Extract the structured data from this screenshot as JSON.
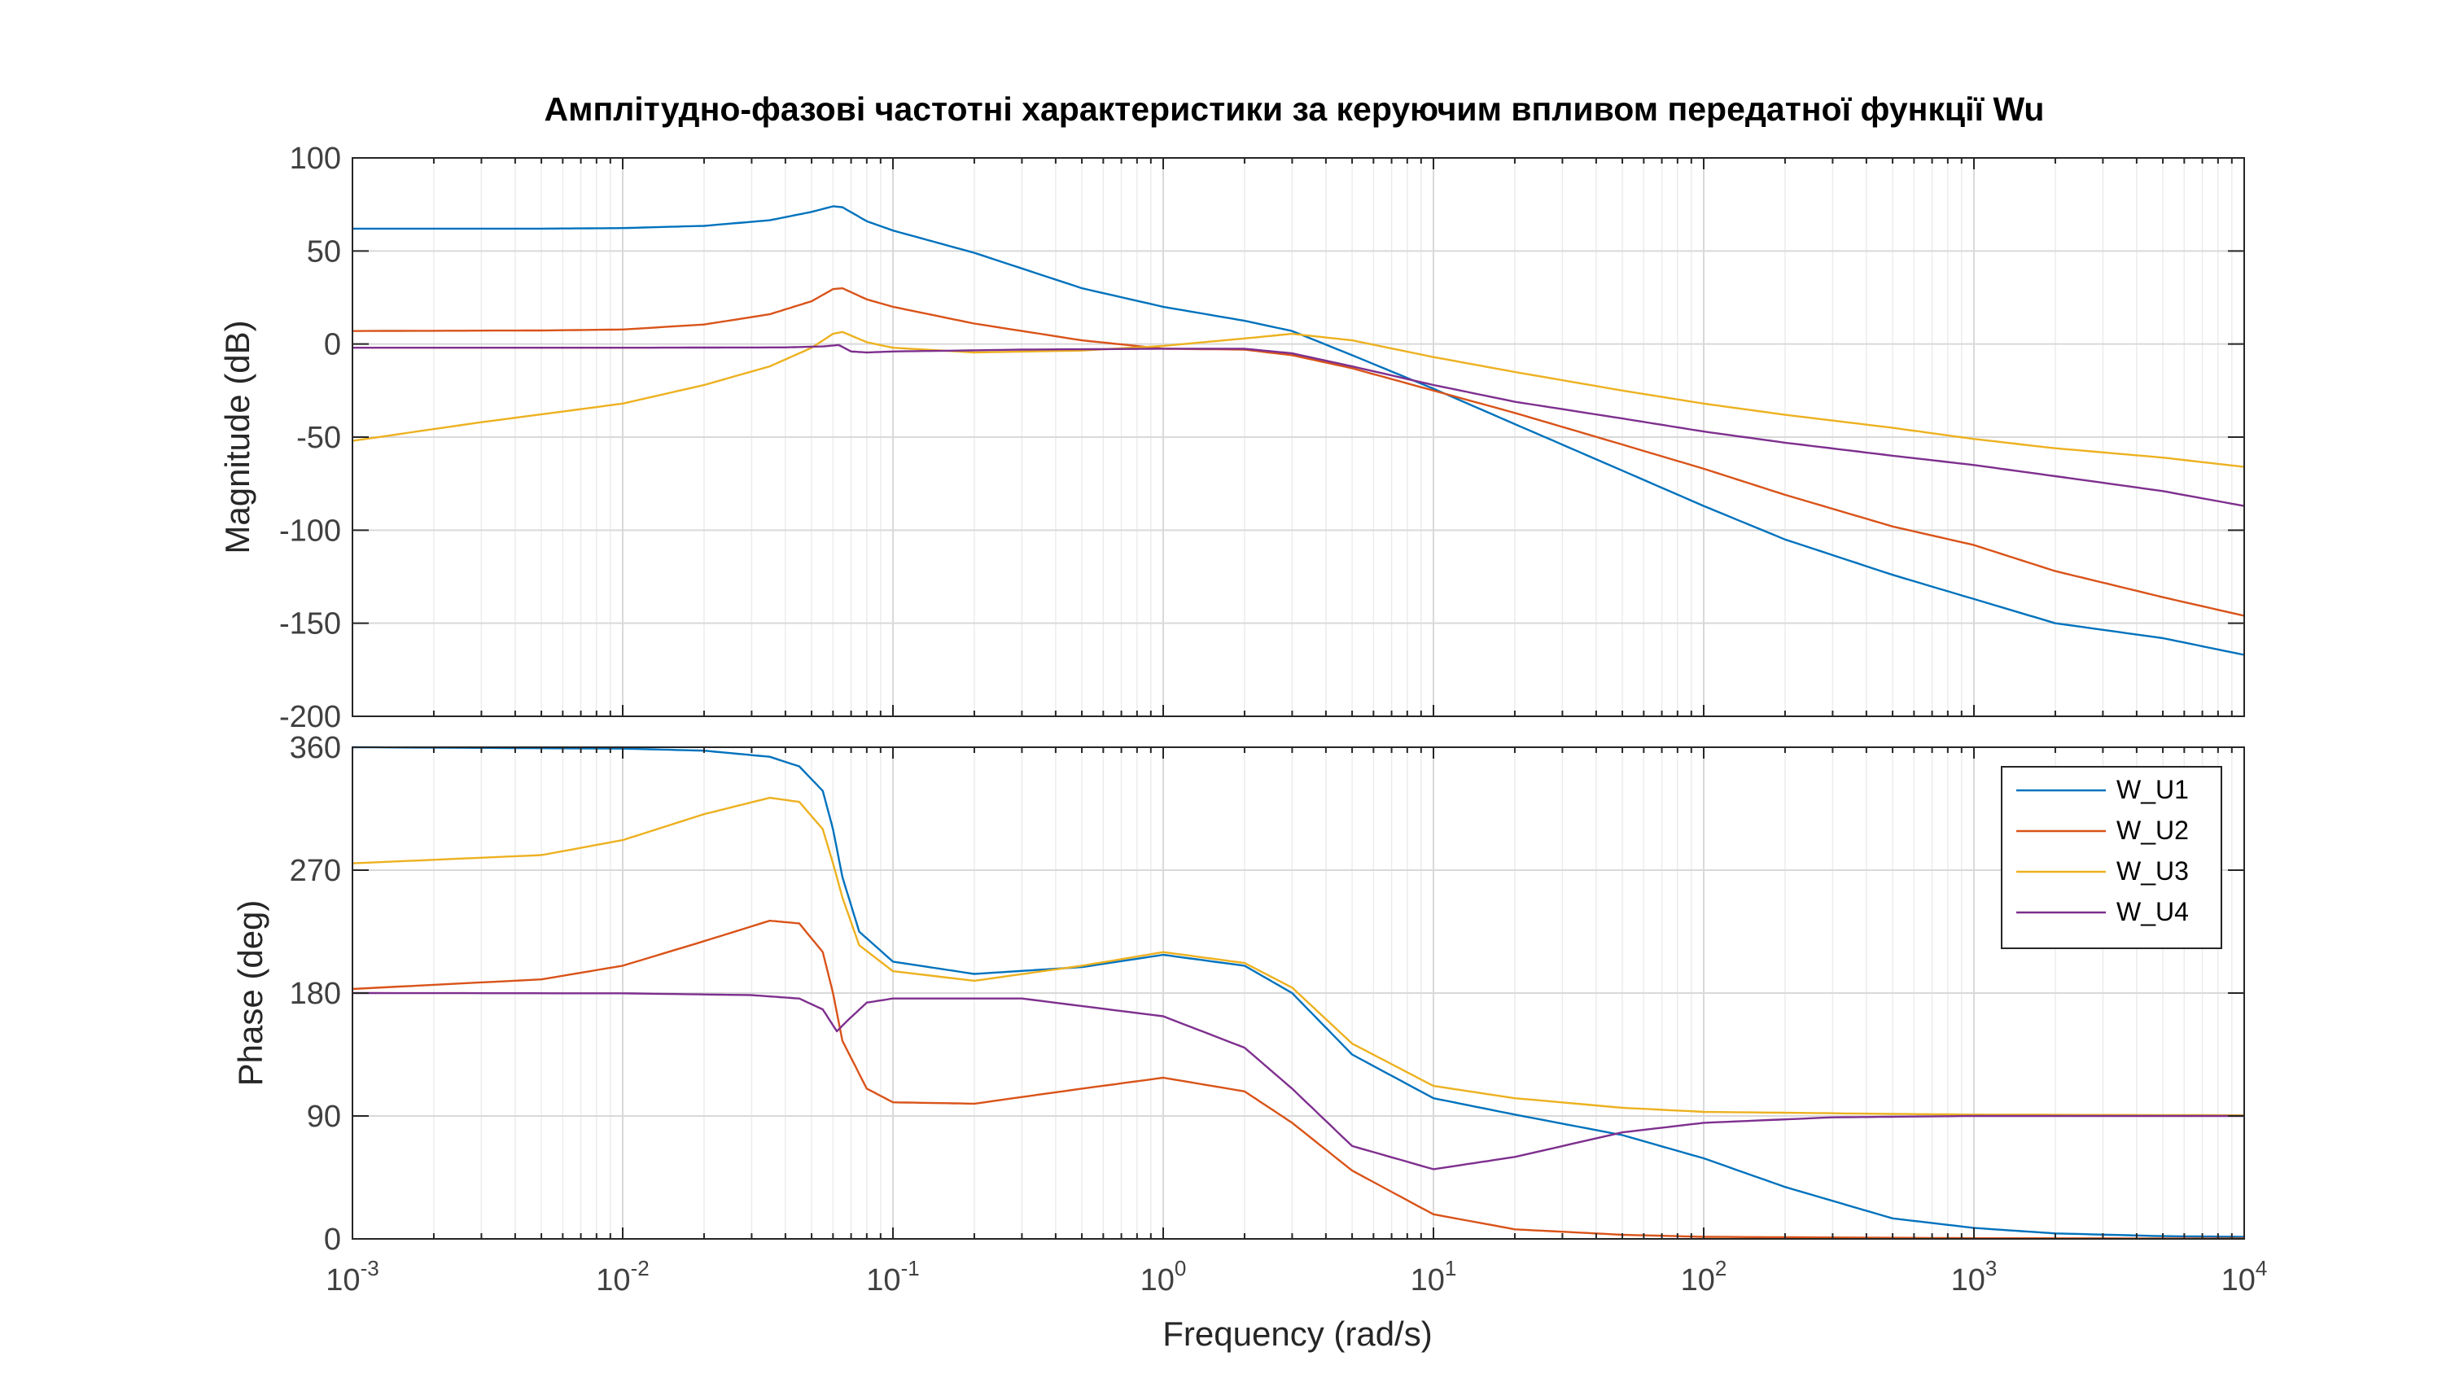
{
  "chart_data": {
    "type": "line",
    "title": "Амплітудно-фазові частотні характеристики за керуючим впливом передатної функції Wu",
    "xlabel": "Frequency  (rad/s)",
    "xscale": "log",
    "xlim": [
      0.001,
      10000
    ],
    "xtick_base": "10",
    "xtick_exponents": [
      "-3",
      "-2",
      "-1",
      "0",
      "1",
      "2",
      "3",
      "4"
    ],
    "grid": true,
    "legend_location": "top-right (phase plot)",
    "colors": {
      "W_U1": "#0072BD",
      "W_U2": "#D95319",
      "W_U3": "#EDB120",
      "W_U4": "#7E2F8E"
    },
    "magnitude": {
      "ylabel": "Magnitude (dB)",
      "ylim": [
        -200,
        100
      ],
      "yticks": [
        -200,
        -150,
        -100,
        -50,
        0,
        50,
        100
      ],
      "ytick_labels": [
        "-200",
        "-150",
        "-100",
        "-50",
        "0",
        "50",
        "100"
      ],
      "series": [
        {
          "name": "W_U1",
          "color": "#0072BD",
          "points": [
            [
              0.001,
              62
            ],
            [
              0.005,
              62
            ],
            [
              0.01,
              62.3
            ],
            [
              0.02,
              63.5
            ],
            [
              0.035,
              66.5
            ],
            [
              0.05,
              71
            ],
            [
              0.06,
              74
            ],
            [
              0.065,
              73.5
            ],
            [
              0.08,
              66
            ],
            [
              0.1,
              61
            ],
            [
              0.2,
              49
            ],
            [
              0.5,
              30
            ],
            [
              1,
              20
            ],
            [
              2,
              12.5
            ],
            [
              3,
              7
            ],
            [
              5,
              -6
            ],
            [
              10,
              -24
            ],
            [
              20,
              -43
            ],
            [
              50,
              -68
            ],
            [
              100,
              -87
            ],
            [
              200,
              -105
            ],
            [
              500,
              -124
            ],
            [
              1000,
              -137
            ],
            [
              2000,
              -150
            ],
            [
              5000,
              -158
            ],
            [
              10000,
              -167
            ]
          ]
        },
        {
          "name": "W_U2",
          "color": "#D95319",
          "points": [
            [
              0.001,
              7
            ],
            [
              0.005,
              7.3
            ],
            [
              0.01,
              7.8
            ],
            [
              0.02,
              10.5
            ],
            [
              0.035,
              16
            ],
            [
              0.05,
              23
            ],
            [
              0.06,
              29.5
            ],
            [
              0.065,
              30
            ],
            [
              0.08,
              24
            ],
            [
              0.1,
              20
            ],
            [
              0.2,
              11
            ],
            [
              0.5,
              2
            ],
            [
              1,
              -2.5
            ],
            [
              2,
              -3
            ],
            [
              3,
              -6
            ],
            [
              5,
              -13
            ],
            [
              10,
              -25
            ],
            [
              20,
              -37
            ],
            [
              50,
              -54
            ],
            [
              100,
              -67
            ],
            [
              200,
              -81
            ],
            [
              500,
              -98
            ],
            [
              1000,
              -108
            ],
            [
              2000,
              -122
            ],
            [
              5000,
              -136
            ],
            [
              10000,
              -146
            ]
          ]
        },
        {
          "name": "W_U3",
          "color": "#EDB120",
          "points": [
            [
              0.001,
              -52
            ],
            [
              0.003,
              -42
            ],
            [
              0.01,
              -32
            ],
            [
              0.02,
              -22
            ],
            [
              0.035,
              -12
            ],
            [
              0.05,
              -2
            ],
            [
              0.06,
              5.5
            ],
            [
              0.065,
              6.5
            ],
            [
              0.08,
              1
            ],
            [
              0.1,
              -2
            ],
            [
              0.2,
              -4.5
            ],
            [
              0.5,
              -3.5
            ],
            [
              1,
              -1
            ],
            [
              2,
              3
            ],
            [
              3,
              5.5
            ],
            [
              5,
              2
            ],
            [
              10,
              -7
            ],
            [
              20,
              -15
            ],
            [
              50,
              -25
            ],
            [
              100,
              -32
            ],
            [
              200,
              -38
            ],
            [
              500,
              -45
            ],
            [
              1000,
              -51
            ],
            [
              2000,
              -56
            ],
            [
              5000,
              -61
            ],
            [
              10000,
              -66
            ]
          ]
        },
        {
          "name": "W_U4",
          "color": "#7E2F8E",
          "points": [
            [
              0.001,
              -2
            ],
            [
              0.01,
              -2
            ],
            [
              0.04,
              -1.8
            ],
            [
              0.055,
              -1.3
            ],
            [
              0.063,
              -0.5
            ],
            [
              0.07,
              -4
            ],
            [
              0.08,
              -4.5
            ],
            [
              0.1,
              -4
            ],
            [
              0.3,
              -3
            ],
            [
              1,
              -2.5
            ],
            [
              2,
              -2.5
            ],
            [
              3,
              -5
            ],
            [
              5,
              -12
            ],
            [
              10,
              -22
            ],
            [
              20,
              -31
            ],
            [
              50,
              -40
            ],
            [
              100,
              -47
            ],
            [
              200,
              -53
            ],
            [
              500,
              -60
            ],
            [
              1000,
              -65
            ],
            [
              2000,
              -71
            ],
            [
              5000,
              -79
            ],
            [
              10000,
              -87
            ]
          ]
        }
      ]
    },
    "phase": {
      "ylabel": "Phase (deg)",
      "ylim": [
        0,
        360
      ],
      "yticks": [
        0,
        90,
        180,
        270,
        360
      ],
      "ytick_labels": [
        "0",
        "90",
        "180",
        "270",
        "360"
      ],
      "series": [
        {
          "name": "W_U1",
          "color": "#0072BD",
          "points": [
            [
              0.001,
              360
            ],
            [
              0.01,
              359
            ],
            [
              0.02,
              357.5
            ],
            [
              0.035,
              353
            ],
            [
              0.045,
              346
            ],
            [
              0.055,
              328
            ],
            [
              0.06,
              300
            ],
            [
              0.065,
              265
            ],
            [
              0.075,
              225
            ],
            [
              0.1,
              203
            ],
            [
              0.2,
              194
            ],
            [
              0.5,
              199
            ],
            [
              1,
              208
            ],
            [
              2,
              200
            ],
            [
              3,
              180
            ],
            [
              5,
              135
            ],
            [
              10,
              103
            ],
            [
              20,
              91
            ],
            [
              50,
              76
            ],
            [
              100,
              59
            ],
            [
              200,
              38
            ],
            [
              500,
              15
            ],
            [
              1000,
              8
            ],
            [
              2000,
              4
            ],
            [
              5000,
              2
            ],
            [
              10000,
              1.5
            ]
          ]
        },
        {
          "name": "W_U2",
          "color": "#D95319",
          "points": [
            [
              0.001,
              183
            ],
            [
              0.005,
              190
            ],
            [
              0.01,
              200
            ],
            [
              0.02,
              218
            ],
            [
              0.035,
              233
            ],
            [
              0.045,
              231
            ],
            [
              0.055,
              210
            ],
            [
              0.06,
              180
            ],
            [
              0.065,
              145
            ],
            [
              0.08,
              110
            ],
            [
              0.1,
              100
            ],
            [
              0.2,
              99
            ],
            [
              0.5,
              110
            ],
            [
              1,
              118
            ],
            [
              2,
              108
            ],
            [
              3,
              85
            ],
            [
              5,
              50
            ],
            [
              10,
              18
            ],
            [
              20,
              7
            ],
            [
              50,
              3
            ],
            [
              100,
              1.5
            ],
            [
              1000,
              0.5
            ],
            [
              10000,
              0.3
            ]
          ]
        },
        {
          "name": "W_U3",
          "color": "#EDB120",
          "points": [
            [
              0.001,
              275
            ],
            [
              0.005,
              281
            ],
            [
              0.01,
              292
            ],
            [
              0.02,
              311
            ],
            [
              0.035,
              323
            ],
            [
              0.045,
              320
            ],
            [
              0.055,
              300
            ],
            [
              0.06,
              275
            ],
            [
              0.065,
              250
            ],
            [
              0.075,
              215
            ],
            [
              0.1,
              196
            ],
            [
              0.2,
              189
            ],
            [
              0.5,
              200
            ],
            [
              1,
              210
            ],
            [
              2,
              202
            ],
            [
              3,
              184
            ],
            [
              5,
              143
            ],
            [
              10,
              112
            ],
            [
              20,
              103
            ],
            [
              50,
              96
            ],
            [
              100,
              93
            ],
            [
              500,
              91.5
            ],
            [
              1000,
              91
            ],
            [
              10000,
              90.5
            ]
          ]
        },
        {
          "name": "W_U4",
          "color": "#7E2F8E",
          "points": [
            [
              0.001,
              180
            ],
            [
              0.01,
              179.8
            ],
            [
              0.03,
              178.5
            ],
            [
              0.045,
              176
            ],
            [
              0.055,
              168
            ],
            [
              0.062,
              152
            ],
            [
              0.068,
              160
            ],
            [
              0.08,
              173
            ],
            [
              0.1,
              176
            ],
            [
              0.3,
              176
            ],
            [
              1,
              163
            ],
            [
              2,
              140
            ],
            [
              3,
              110
            ],
            [
              5,
              68
            ],
            [
              10,
              51
            ],
            [
              20,
              60
            ],
            [
              50,
              78
            ],
            [
              100,
              85
            ],
            [
              300,
              89
            ],
            [
              1000,
              90
            ],
            [
              10000,
              90
            ]
          ]
        }
      ]
    }
  }
}
